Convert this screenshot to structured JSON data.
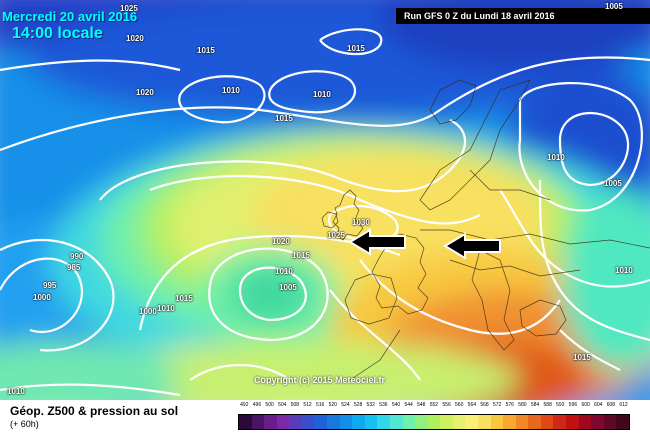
{
  "header": {
    "date": "Mercredi 20 avril 2016",
    "time": "14:00 locale",
    "run": "Run GFS 0 Z du Lundi 18 avril 2016"
  },
  "isobars": {
    "p1": "1025",
    "p2": "1020",
    "p3": "1015",
    "p4": "1015",
    "p5": "1020",
    "p6": "1010",
    "p7": "1010",
    "p8": "1015",
    "p9": "1005",
    "p10": "1010",
    "p11": "1005",
    "p12": "1030",
    "p13": "1025",
    "p14": "1020",
    "p15": "1015",
    "p16": "990",
    "p17": "985",
    "p18": "995",
    "p19": "1000",
    "p20": "1015",
    "p21": "1000",
    "p22": "1010",
    "p23": "1010",
    "p24": "1005",
    "p25": "1010",
    "p26": "1015",
    "p27": "1010"
  },
  "copyright": "Copyright (c) 2015 Meteociel.fr",
  "footer": {
    "title": "Géop. Z500 & pression au sol",
    "subtitle": "(+ 60h)"
  },
  "scale": {
    "labels": [
      "492",
      "496",
      "500",
      "504",
      "508",
      "512",
      "516",
      "520",
      "524",
      "528",
      "532",
      "536",
      "540",
      "544",
      "548",
      "552",
      "556",
      "560",
      "564",
      "568",
      "572",
      "576",
      "580",
      "584",
      "588",
      "592",
      "596",
      "600",
      "604",
      "608",
      "612"
    ],
    "colors": [
      "#2a0a3a",
      "#4a1466",
      "#6a1e8c",
      "#7a2aa6",
      "#5a3cb8",
      "#3a4ecc",
      "#2060d8",
      "#1878e0",
      "#1090e8",
      "#10a8ef",
      "#18c0f0",
      "#30d8ea",
      "#50e8d0",
      "#70f0a8",
      "#90f080",
      "#b0f060",
      "#d0f060",
      "#e8f070",
      "#f8f078",
      "#f8e060",
      "#f8c840",
      "#f8a830",
      "#f08828",
      "#e86820",
      "#e04818",
      "#d02818",
      "#c01010",
      "#a00820",
      "#800830",
      "#600828",
      "#400818"
    ]
  },
  "colors": {
    "accent": "#00ffff",
    "isobar": "#ffffff"
  }
}
